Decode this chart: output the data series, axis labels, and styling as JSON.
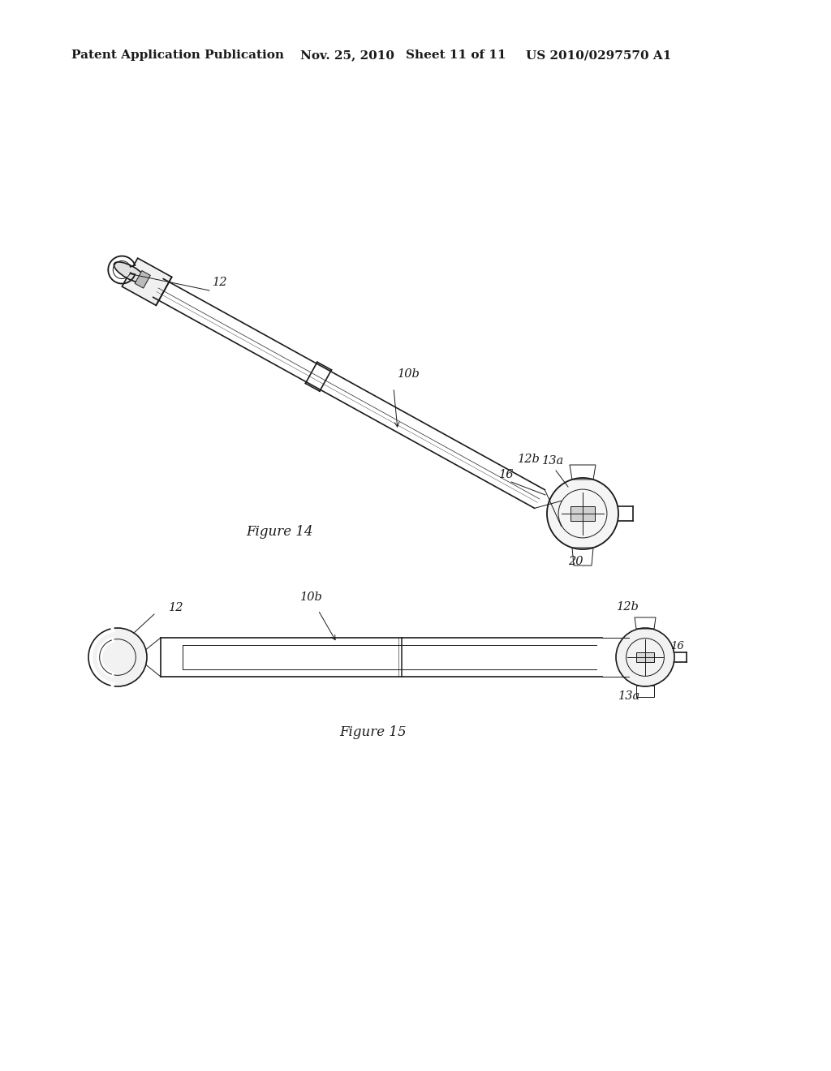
{
  "background_color": "#ffffff",
  "header_text": "Patent Application Publication",
  "header_date": "Nov. 25, 2010",
  "header_sheet": "Sheet 11 of 11",
  "header_patent": "US 2010/0297570 A1",
  "header_fontsize": 11,
  "figure14_label": "Figure 14",
  "figure15_label": "Figure 15",
  "line_color": "#1a1a1a",
  "line_width": 1.2,
  "thin_line": 0.7,
  "annotation_fontsize": 10.5,
  "label_fontsize": 11
}
